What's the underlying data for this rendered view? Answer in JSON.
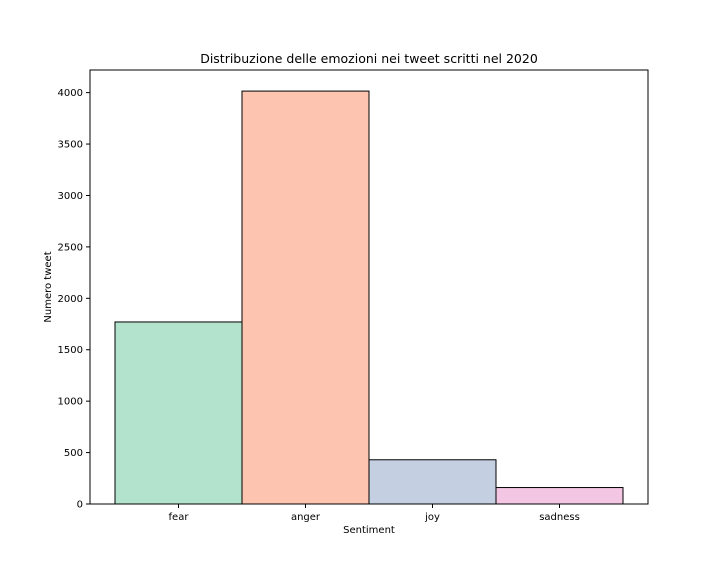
{
  "chart_data": {
    "type": "bar",
    "title": "Distribuzione delle emozioni nei tweet scritti nel 2020",
    "xlabel": "Sentiment",
    "ylabel": "Numero tweet",
    "categories": [
      "fear",
      "anger",
      "joy",
      "sadness"
    ],
    "values": [
      1770,
      4015,
      430,
      160
    ],
    "colors": [
      "#b3e2cd",
      "#fdc4b0",
      "#c5cfe2",
      "#f3c6e3"
    ],
    "ylim": [
      0,
      4220
    ],
    "yticks": [
      0,
      500,
      1000,
      1500,
      2000,
      2500,
      3000,
      3500,
      4000
    ],
    "grid": false,
    "bar_edge_color": "#000000"
  }
}
